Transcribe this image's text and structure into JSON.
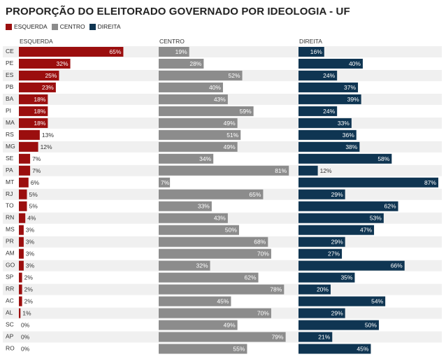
{
  "chart_data": {
    "type": "bar",
    "title": "PROPORÇÃO DO ELEITORADO GOVERNADO POR IDEOLOGIA - UF",
    "categories": [
      "CE",
      "PE",
      "ES",
      "PB",
      "BA",
      "PI",
      "MA",
      "RS",
      "MG",
      "SE",
      "PA",
      "MT",
      "RJ",
      "TO",
      "RN",
      "MS",
      "PR",
      "AM",
      "GO",
      "SP",
      "RR",
      "AC",
      "AL",
      "SC",
      "AP",
      "RO"
    ],
    "series": [
      {
        "name": "ESQUERDA",
        "color": "#9b0e0e",
        "values": [
          65,
          32,
          25,
          23,
          18,
          18,
          18,
          13,
          12,
          7,
          7,
          6,
          5,
          5,
          4,
          3,
          3,
          3,
          3,
          2,
          2,
          2,
          1,
          0,
          0,
          0
        ]
      },
      {
        "name": "CENTRO",
        "color": "#8c8c8c",
        "values": [
          19,
          28,
          52,
          40,
          43,
          59,
          49,
          51,
          49,
          34,
          81,
          7,
          65,
          33,
          43,
          50,
          68,
          70,
          32,
          62,
          78,
          45,
          70,
          49,
          79,
          55
        ]
      },
      {
        "name": "DIREITA",
        "color": "#0f3552",
        "values": [
          16,
          40,
          24,
          37,
          39,
          24,
          33,
          36,
          38,
          58,
          12,
          87,
          29,
          62,
          53,
          47,
          29,
          27,
          66,
          35,
          20,
          54,
          29,
          50,
          21,
          45
        ]
      }
    ],
    "value_suffix": "%",
    "xlim": [
      0,
      87
    ],
    "legend_position": "top-left"
  }
}
